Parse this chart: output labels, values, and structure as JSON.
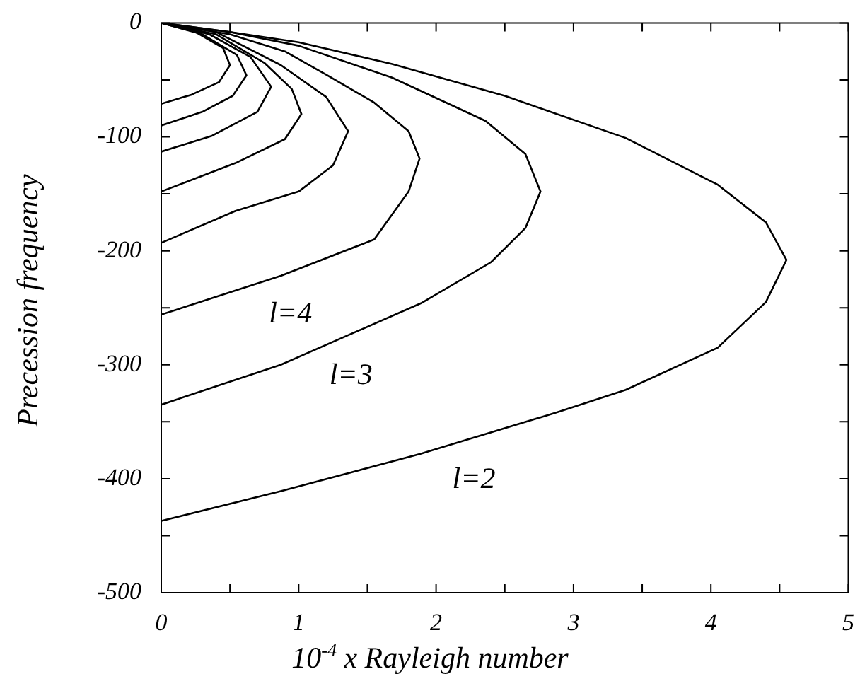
{
  "chart_data": {
    "type": "line",
    "xlabel": "10$^{-4}$ x Rayleigh number",
    "ylabel": "Precession frequency",
    "xlim": [
      0,
      5
    ],
    "ylim": [
      -500,
      0
    ],
    "xticks": [
      0,
      {
        "value": 0.5,
        "label": null
      },
      1,
      {
        "value": 1.5,
        "label": null
      },
      2,
      {
        "value": 2.5,
        "label": null
      },
      3,
      {
        "value": 3.5,
        "label": null
      },
      4,
      {
        "value": 4.5,
        "label": null
      },
      5
    ],
    "yticks": [
      -500,
      {
        "value": -450,
        "label": null
      },
      -400,
      {
        "value": -350,
        "label": null
      },
      -300,
      {
        "value": -250,
        "label": null
      },
      -200,
      {
        "value": -150,
        "label": null
      },
      -100,
      {
        "value": -50,
        "label": null
      },
      0
    ],
    "grid": false,
    "legend": false,
    "marker": "none",
    "line_style": "solid",
    "series": [
      {
        "name": "l=2",
        "color": "#000000",
        "x": [
          0,
          0.5,
          1,
          1.68,
          2.5,
          3.38,
          4.05,
          4.4,
          4.55,
          4.4,
          4.05,
          3.38,
          2.9,
          1.89,
          0.87,
          0
        ],
        "values": [
          0,
          -8,
          -17,
          -36,
          -64,
          -101,
          -142,
          -175,
          -208,
          -245,
          -285,
          -322,
          -341,
          -378,
          -411,
          -437
        ]
      },
      {
        "name": "l=3",
        "color": "#000000",
        "x": [
          0,
          0.5,
          1,
          1.68,
          2.36,
          2.65,
          2.76,
          2.65,
          2.4,
          1.89,
          0.87,
          0
        ],
        "values": [
          0,
          -8,
          -20,
          -48,
          -86,
          -115,
          -148,
          -180,
          -210,
          -246,
          -300,
          -335
        ]
      },
      {
        "name": "l=4",
        "color": "#000000",
        "x": [
          0,
          0.5,
          0.9,
          1.21,
          1.55,
          1.8,
          1.88,
          1.8,
          1.55,
          0.87,
          0
        ],
        "values": [
          0,
          -10,
          -25,
          -46,
          -70,
          -95,
          -119,
          -148,
          -190,
          -222,
          -256
        ]
      },
      {
        "color": "#000000",
        "x": [
          0,
          0.4,
          0.87,
          1.2,
          1.36,
          1.25,
          1.0,
          0.54,
          0
        ],
        "values": [
          0,
          -8,
          -37,
          -65,
          -95,
          -125,
          -148,
          -165,
          -193
        ]
      },
      {
        "color": "#000000",
        "x": [
          0,
          0.4,
          0.75,
          0.95,
          1.02,
          0.9,
          0.54,
          0
        ],
        "values": [
          0,
          -10,
          -35,
          -58,
          -80,
          -102,
          -123,
          -148
        ]
      },
      {
        "color": "#000000",
        "x": [
          0,
          0.35,
          0.65,
          0.8,
          0.7,
          0.37,
          0
        ],
        "values": [
          0,
          -10,
          -30,
          -56,
          -78,
          -99,
          -113
        ]
      },
      {
        "color": "#000000",
        "x": [
          0,
          0.3,
          0.55,
          0.62,
          0.52,
          0.3,
          0
        ],
        "values": [
          0,
          -10,
          -28,
          -46,
          -64,
          -78,
          -90
        ]
      },
      {
        "color": "#000000",
        "x": [
          0,
          0.25,
          0.45,
          0.5,
          0.42,
          0.22,
          0
        ],
        "values": [
          0,
          -8,
          -22,
          -37,
          -52,
          -63,
          -71
        ]
      }
    ]
  }
}
